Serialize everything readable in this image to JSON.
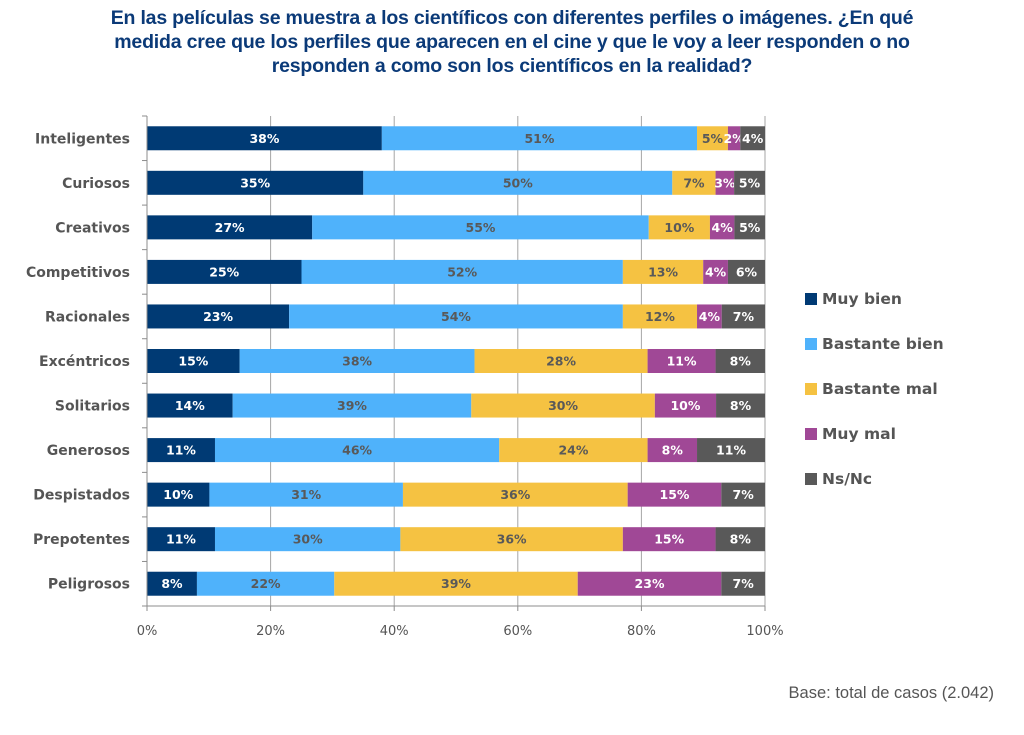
{
  "title_lines": [
    "En las películas se muestra a los científicos con diferentes perfiles o imágenes. ¿En qué",
    "medida cree que los perfiles que aparecen en el cine y que le voy a leer responden o no",
    "responden a como son los científicos en la realidad?"
  ],
  "footnote": "Base: total de casos (2.042)",
  "chart_data": {
    "type": "bar",
    "orientation": "horizontal",
    "stacked": "percent",
    "title": "En las películas se muestra a los científicos con diferentes perfiles o imágenes. ¿En qué medida cree que los perfiles que aparecen en el cine y que le voy a leer responden o no responden a como son los científicos en la realidad?",
    "xlabel": "",
    "ylabel": "",
    "xlim": [
      0,
      100
    ],
    "x_ticks": [
      "0%",
      "20%",
      "40%",
      "60%",
      "80%",
      "100%"
    ],
    "grid": "vertical",
    "legend_position": "right",
    "categories": [
      "Inteligentes",
      "Curiosos",
      "Creativos",
      "Competitivos",
      "Racionales",
      "Excéntricos",
      "Solitarios",
      "Generosos",
      "Despistados",
      "Prepotentes",
      "Peligrosos"
    ],
    "series": [
      {
        "name": "Muy bien",
        "color": "#003a74",
        "label_color": "#ffffff",
        "values": [
          38,
          35,
          27,
          25,
          23,
          15,
          14,
          11,
          10,
          11,
          8
        ]
      },
      {
        "name": "Bastante bien",
        "color": "#4fb2fb",
        "label_color": "#595959",
        "values": [
          51,
          50,
          55,
          52,
          54,
          38,
          39,
          46,
          31,
          30,
          22
        ]
      },
      {
        "name": "Bastante mal",
        "color": "#f5c242",
        "label_color": "#595959",
        "values": [
          5,
          7,
          10,
          13,
          12,
          28,
          30,
          24,
          36,
          36,
          39
        ]
      },
      {
        "name": "Muy mal",
        "color": "#a04896",
        "label_color": "#ffffff",
        "values": [
          2,
          3,
          4,
          4,
          4,
          11,
          10,
          8,
          15,
          15,
          23
        ]
      },
      {
        "name": "Ns/Nc",
        "color": "#595959",
        "label_color": "#ffffff",
        "values": [
          4,
          5,
          5,
          6,
          7,
          8,
          8,
          11,
          7,
          8,
          7
        ]
      }
    ],
    "value_suffix": "%"
  }
}
